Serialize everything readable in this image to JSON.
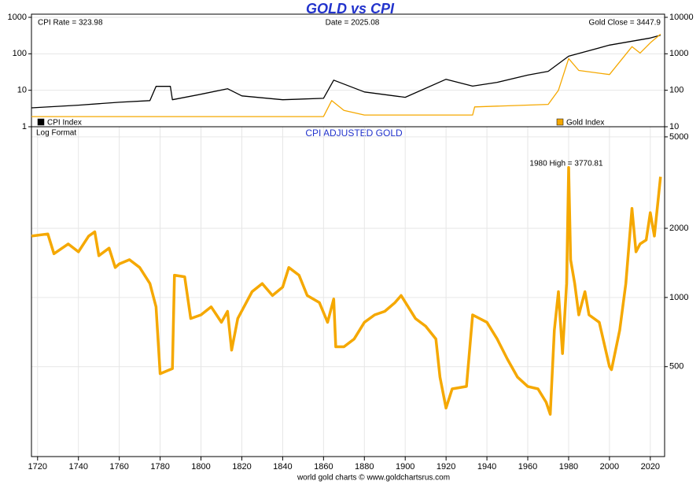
{
  "chart_data": [
    {
      "type": "line",
      "title": "GOLD vs CPI",
      "log_scale": true,
      "grid": true,
      "annotations": [
        "CPI Rate = 323.98",
        "Date = 2025.08",
        "Gold Close = 3447.9"
      ],
      "xlim": [
        1717,
        2027
      ],
      "ylim": [
        1,
        1000
      ],
      "yticks": [
        1,
        10,
        100,
        1000
      ],
      "y2lim": [
        10,
        10000
      ],
      "y2ticks": [
        10,
        100,
        1000,
        10000
      ],
      "series": [
        {
          "name": "CPI Index",
          "color": "#000000",
          "x": [
            1717,
            1740,
            1760,
            1775,
            1778,
            1785,
            1786,
            1800,
            1813,
            1820,
            1840,
            1860,
            1865,
            1880,
            1900,
            1920,
            1933,
            1945,
            1960,
            1970,
            1980,
            2000,
            2020,
            2025
          ],
          "values": [
            3.3,
            3.9,
            4.7,
            5.2,
            12.8,
            12.8,
            5.5,
            7.8,
            11,
            7,
            5.5,
            6,
            19,
            9,
            6.4,
            20,
            13,
            16.5,
            26,
            33,
            86,
            173,
            270,
            324
          ]
        },
        {
          "name": "Gold Index",
          "color": "#f5a800",
          "axis": "y2",
          "x": [
            1717,
            1860,
            1864,
            1870,
            1880,
            1933,
            1934,
            1970,
            1975,
            1980,
            1985,
            2000,
            2011,
            2015,
            2020,
            2025
          ],
          "values": [
            19,
            19,
            52,
            28,
            21,
            21,
            35,
            41,
            100,
            740,
            350,
            270,
            1570,
            1050,
            2000,
            3448
          ]
        }
      ]
    },
    {
      "type": "line",
      "title": "CPI ADJUSTED GOLD",
      "log_scale": true,
      "grid": true,
      "annotations": [
        "Log Format",
        "1980 High = 3770.81"
      ],
      "source": "world gold charts © www.goldchartsrus.com",
      "xlim": [
        1717,
        2027
      ],
      "xticks": [
        1720,
        1740,
        1760,
        1780,
        1800,
        1820,
        1840,
        1860,
        1880,
        1900,
        1920,
        1940,
        1960,
        1980,
        2000,
        2020
      ],
      "ylim": [
        203,
        5535
      ],
      "yticks": [
        500,
        1000,
        2000,
        5000
      ],
      "series": [
        {
          "name": "CPI Adjusted Gold",
          "color": "#f5a800",
          "x": [
            1717,
            1725,
            1728,
            1735,
            1740,
            1745,
            1748,
            1750,
            1755,
            1758,
            1760,
            1765,
            1770,
            1775,
            1778,
            1780,
            1786,
            1787,
            1792,
            1795,
            1800,
            1805,
            1810,
            1813,
            1815,
            1818,
            1825,
            1830,
            1835,
            1840,
            1843,
            1848,
            1852,
            1858,
            1862,
            1865,
            1866,
            1870,
            1875,
            1880,
            1885,
            1890,
            1895,
            1898,
            1905,
            1910,
            1915,
            1917,
            1920,
            1923,
            1930,
            1933,
            1940,
            1945,
            1950,
            1955,
            1960,
            1965,
            1969,
            1971,
            1973,
            1975,
            1977,
            1979,
            1980,
            1981,
            1983,
            1985,
            1988,
            1990,
            1995,
            2000,
            2001,
            2005,
            2008,
            2011,
            2013,
            2015,
            2018,
            2020,
            2022,
            2025
          ],
          "values": [
            1850,
            1890,
            1550,
            1710,
            1580,
            1850,
            1930,
            1520,
            1640,
            1350,
            1400,
            1460,
            1350,
            1150,
            910,
            466,
            490,
            1250,
            1230,
            810,
            840,
            910,
            780,
            870,
            590,
            810,
            1060,
            1150,
            1020,
            1110,
            1350,
            1250,
            1020,
            950,
            780,
            985,
            610,
            610,
            660,
            780,
            840,
            870,
            950,
            1020,
            810,
            750,
            660,
            450,
            330,
            400,
            410,
            840,
            780,
            660,
            540,
            450,
            410,
            400,
            350,
            310,
            720,
            1060,
            570,
            1150,
            3680,
            1460,
            1150,
            840,
            1060,
            840,
            780,
            500,
            485,
            720,
            1150,
            2440,
            1580,
            1710,
            1780,
            2340,
            1850,
            3350
          ]
        }
      ]
    }
  ]
}
